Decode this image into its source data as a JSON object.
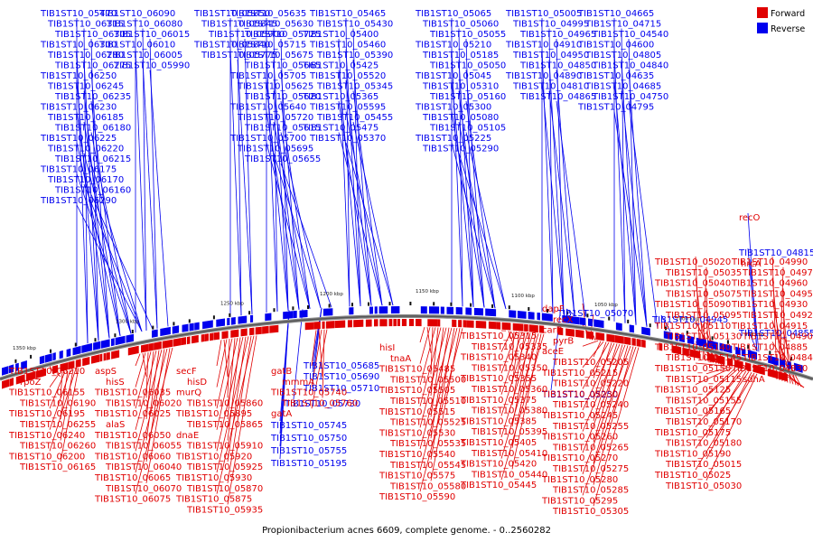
{
  "caption": "Propionibacterium acnes 6609, complete genome. - 0..2560282",
  "legend": {
    "forward_label": "Forward",
    "reverse_label": "Reverse",
    "forward_color": "#e00000",
    "reverse_color": "#0000ee"
  },
  "ticks": [
    "950 kbp",
    "1000 kbp",
    "1050 kbp",
    "1100 kbp",
    "1150 kbp",
    "1200 kbp",
    "1250 kbp",
    "1300 kbp",
    "1350 kbp"
  ],
  "reverse_labels": [
    "TIB1ST10_06315",
    "TIB1ST10_06305",
    "TIB1ST10_06300",
    "TIB1ST10_06280",
    "TIB1ST10_06275",
    "TIB1ST10_06250",
    "TIB1ST10_06245",
    "TIB1ST10_06235",
    "TIB1ST10_06230",
    "TIB1ST10_06185",
    "TIB1ST10_06180",
    "TIB1ST10_06225",
    "TIB1ST10_06220",
    "TIB1ST10_06215",
    "TIB1ST10_06175",
    "TIB1ST10_06170",
    "TIB1ST10_06160",
    "TIB1ST10_06290",
    "TIB1ST10_06090",
    "TIB1ST10_06080",
    "TIB1ST10_06015",
    "TIB1ST10_06010",
    "TIB1ST10_06005",
    "TIB1ST10_05990",
    "TIB1ST10_05850",
    "TIB1ST10_05845",
    "TIB1ST10_05900",
    "TIB1ST10_05840",
    "TIB1ST10_05775",
    "TIB1ST10_05635",
    "TIB1ST10_05630",
    "TIB1ST10_05725",
    "TIB1ST10_05715",
    "TIB1ST10_05675",
    "TIB1ST10_05665",
    "TIB1ST10_05705",
    "TIB1ST10_05625",
    "TIB1ST10_05620",
    "TIB1ST10_05640",
    "TIB1ST10_05720",
    "TIB1ST10_05615",
    "TIB1ST10_05700",
    "TIB1ST10_05695",
    "TIB1ST10_05655",
    "TIB1ST10_05470",
    "TIB1ST10_05465",
    "TIB1ST10_05430",
    "TIB1ST10_05400",
    "TIB1ST10_05460",
    "TIB1ST10_05390",
    "TIB1ST10_05425",
    "TIB1ST10_05520",
    "TIB1ST10_05345",
    "TIB1ST10_05365",
    "TIB1ST10_05595",
    "TIB1ST10_05455",
    "TIB1ST10_05475",
    "TIB1ST10_05370",
    "TIB1ST10_05065",
    "TIB1ST10_05060",
    "TIB1ST10_05055",
    "TIB1ST10_05210",
    "TIB1ST10_05185",
    "TIB1ST10_05050",
    "TIB1ST10_05045",
    "TIB1ST10_05310",
    "TIB1ST10_05160",
    "TIB1ST10_05300",
    "TIB1ST10_05080",
    "TIB1ST10_05105",
    "TIB1ST10_05225",
    "TIB1ST10_05290",
    "TIB1ST10_05005",
    "TIB1ST10_04995",
    "TIB1ST10_04965",
    "TIB1ST10_04910",
    "TIB1ST10_04950",
    "TIB1ST10_04850",
    "TIB1ST10_04890",
    "TIB1ST10_04810",
    "TIB1ST10_04865",
    "TIB1ST10_04665",
    "TIB1ST10_04715",
    "TIB1ST10_04540",
    "TIB1ST10_04600",
    "TIB1ST10_04805",
    "TIB1ST10_04840",
    "TIB1ST10_04635",
    "TIB1ST10_04685",
    "TIB1ST10_04750",
    "TIB1ST10_04795",
    "TIB1ST10_05250",
    "TIB1ST10_05710",
    "TIB1ST10_05690",
    "TIB1ST10_05685",
    "TIB1ST10_05730",
    "TIB1ST10_05745",
    "TIB1ST10_05750",
    "TIB1ST10_05755",
    "TIB1ST10_05195",
    "TIB1ST10_05070",
    "TIB1ST10_04945",
    "TIB1ST10_04855",
    "TIB1ST10_04815",
    "recO",
    "hrcA"
  ],
  "forward_labels": [
    "TIB1ST10_06210",
    "rpoZ",
    "TIB1ST10_06155",
    "TIB1ST10_06190",
    "TIB1ST10_06195",
    "TIB1ST10_06255",
    "TIB1ST10_06240",
    "TIB1ST10_06260",
    "TIB1ST10_06200",
    "TIB1ST10_06165",
    "aspS",
    "hisS",
    "TIB1ST10_06035",
    "TIB1ST10_06020",
    "TIB1ST10_06025",
    "alaS",
    "TIB1ST10_06050",
    "TIB1ST10_06055",
    "TIB1ST10_06060",
    "TIB1ST10_06040",
    "TIB1ST10_06065",
    "TIB1ST10_06070",
    "TIB1ST10_06075",
    "secF",
    "hisD",
    "murQ",
    "TIB1ST10_05860",
    "TIB1ST10_05895",
    "TIB1ST10_05865",
    "dnaE",
    "TIB1ST10_05910",
    "TIB1ST10_05920",
    "TIB1ST10_05925",
    "TIB1ST10_05930",
    "TIB1ST10_05870",
    "TIB1ST10_05875",
    "TIB1ST10_05935",
    "TIB1ST10_05940",
    "TIB1ST10_05950",
    "gatB",
    "mmmA",
    "TIB1ST10_05740",
    "TIB1ST10_05760",
    "gatA",
    "hisI",
    "tnaA",
    "TIB1ST10_05485",
    "TIB1ST10_05500",
    "TIB1ST10_05505",
    "TIB1ST10_05510",
    "TIB1ST10_05515",
    "TIB1ST10_05525",
    "TIB1ST10_05530",
    "TIB1ST10_05535",
    "TIB1ST10_05540",
    "TIB1ST10_05545",
    "TIB1ST10_05575",
    "TIB1ST10_05580",
    "TIB1ST10_05590",
    "TIB1ST10_05315",
    "TIB1ST10_05335",
    "TIB1ST10_05340",
    "TIB1ST10_05350",
    "TIB1ST10_05355",
    "TIB1ST10_05360",
    "TIB1ST10_05375",
    "TIB1ST10_05380",
    "TIB1ST10_05385",
    "TIB1ST10_05395",
    "TIB1ST10_05405",
    "TIB1ST10_05410",
    "TIB1ST10_05420",
    "TIB1ST10_05440",
    "TIB1ST10_05445",
    "dapF",
    "recX",
    "carB",
    "pyrB",
    "aceE",
    "TIB1ST10_05205",
    "TIB1ST10_05215",
    "TIB1ST10_05220",
    "TIB1ST10_05230",
    "TIB1ST10_05240",
    "TIB1ST10_05245",
    "TIB1ST10_05255",
    "TIB1ST10_05260",
    "TIB1ST10_05265",
    "TIB1ST10_05270",
    "TIB1ST10_05275",
    "TIB1ST10_05280",
    "TIB1ST10_05285",
    "TIB1ST10_05295",
    "TIB1ST10_05305",
    "TIB1ST10_05320",
    "TIB1ST10_04985",
    "TIB1ST10_05010",
    "TIB1ST10_05020",
    "TIB1ST10_05035",
    "TIB1ST10_05040",
    "TIB1ST10_05075",
    "TIB1ST10_05090",
    "TIB1ST10_05095",
    "TIB1ST10_05110",
    "TIB1ST10_05130",
    "TIB1ST10_05140",
    "TIB1ST10_05145",
    "TIB1ST10_05150",
    "TIB1ST10_05115",
    "TIB1ST10_05125",
    "TIB1ST10_05155",
    "TIB1ST10_05165",
    "TIB1ST10_05170",
    "TIB1ST10_05175",
    "TIB1ST10_05180",
    "TIB1ST10_05190",
    "TIB1ST10_05015",
    "TIB1ST10_05025",
    "TIB1ST10_05030",
    "TIB1ST10_04990",
    "TIB1ST10_04970",
    "TIB1ST10_04960",
    "TIB1ST10_04955",
    "TIB1ST10_04930",
    "TIB1ST10_04920",
    "TIB1ST10_04915",
    "TIB1ST10_04905",
    "TIB1ST10_04885",
    "TIB1ST10_04845",
    "TIB1ST10_04830",
    "sdhA"
  ]
}
